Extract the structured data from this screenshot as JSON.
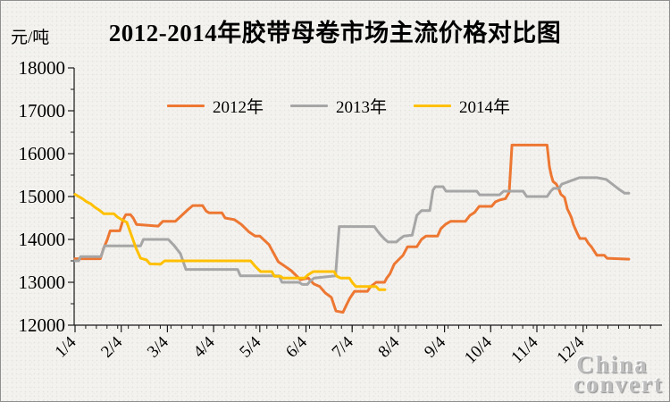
{
  "title": "2012-2014年胶带母卷市场主流价格对比图",
  "y_unit_label": "元/吨",
  "legend": {
    "items": [
      {
        "label": "2012年",
        "color": "#ED7732"
      },
      {
        "label": "2013年",
        "color": "#A6A6A6"
      },
      {
        "label": "2014年",
        "color": "#FFC000"
      }
    ]
  },
  "watermark": {
    "line1": "China",
    "line2": "convert"
  },
  "colors": {
    "axis": "#1a1a1a",
    "background": "#f3f2ef"
  },
  "chart_data": {
    "type": "line",
    "title": "2012-2014年胶带母卷市场主流价格对比图",
    "xlabel": "",
    "ylabel": "元/吨",
    "ylim": [
      12000,
      18000
    ],
    "y_major_ticks": [
      12000,
      13000,
      14000,
      15000,
      16000,
      17000,
      18000
    ],
    "y_minor_step": 500,
    "x_tick_labels": [
      "1/4",
      "2/4",
      "3/4",
      "4/4",
      "5/4",
      "6/4",
      "7/4",
      "8/4",
      "9/4",
      "10/4",
      "11/4",
      "12/4"
    ],
    "x_label_rotation": -45,
    "grid": false,
    "legend_position": "top-left-inside",
    "series": [
      {
        "name": "2012年",
        "color": "#ED7732",
        "points": [
          [
            1.0,
            13550
          ],
          [
            1.55,
            13550
          ],
          [
            1.62,
            13800
          ],
          [
            1.7,
            14000
          ],
          [
            1.76,
            14200
          ],
          [
            1.97,
            14200
          ],
          [
            2.04,
            14460
          ],
          [
            2.1,
            14580
          ],
          [
            2.2,
            14580
          ],
          [
            2.26,
            14500
          ],
          [
            2.33,
            14350
          ],
          [
            2.8,
            14310
          ],
          [
            2.9,
            14420
          ],
          [
            3.17,
            14420
          ],
          [
            3.3,
            14550
          ],
          [
            3.45,
            14700
          ],
          [
            3.55,
            14790
          ],
          [
            3.76,
            14790
          ],
          [
            3.84,
            14660
          ],
          [
            3.9,
            14620
          ],
          [
            4.18,
            14620
          ],
          [
            4.25,
            14500
          ],
          [
            4.45,
            14460
          ],
          [
            4.6,
            14350
          ],
          [
            4.77,
            14170
          ],
          [
            4.9,
            14080
          ],
          [
            5.0,
            14080
          ],
          [
            5.2,
            13880
          ],
          [
            5.4,
            13480
          ],
          [
            5.55,
            13370
          ],
          [
            5.68,
            13270
          ],
          [
            5.88,
            13060
          ],
          [
            6.05,
            13100
          ],
          [
            6.17,
            12960
          ],
          [
            6.3,
            12900
          ],
          [
            6.42,
            12750
          ],
          [
            6.55,
            12650
          ],
          [
            6.65,
            12330
          ],
          [
            6.8,
            12300
          ],
          [
            6.88,
            12480
          ],
          [
            6.95,
            12630
          ],
          [
            7.05,
            12790
          ],
          [
            7.33,
            12790
          ],
          [
            7.4,
            12900
          ],
          [
            7.52,
            13000
          ],
          [
            7.7,
            13000
          ],
          [
            7.75,
            13100
          ],
          [
            7.82,
            13200
          ],
          [
            7.91,
            13420
          ],
          [
            8.0,
            13520
          ],
          [
            8.1,
            13630
          ],
          [
            8.2,
            13830
          ],
          [
            8.4,
            13830
          ],
          [
            8.5,
            14000
          ],
          [
            8.6,
            14080
          ],
          [
            8.85,
            14080
          ],
          [
            8.92,
            14250
          ],
          [
            9.02,
            14350
          ],
          [
            9.13,
            14420
          ],
          [
            9.45,
            14420
          ],
          [
            9.55,
            14560
          ],
          [
            9.65,
            14630
          ],
          [
            9.75,
            14770
          ],
          [
            10.02,
            14770
          ],
          [
            10.1,
            14875
          ],
          [
            10.2,
            14920
          ],
          [
            10.32,
            14950
          ],
          [
            10.4,
            15100
          ],
          [
            10.46,
            16200
          ],
          [
            11.22,
            16200
          ],
          [
            11.27,
            15700
          ],
          [
            11.31,
            15500
          ],
          [
            11.35,
            15350
          ],
          [
            11.42,
            15290
          ],
          [
            11.47,
            15190
          ],
          [
            11.52,
            15050
          ],
          [
            11.6,
            14980
          ],
          [
            11.66,
            14710
          ],
          [
            11.71,
            14600
          ],
          [
            11.75,
            14500
          ],
          [
            11.79,
            14350
          ],
          [
            11.83,
            14250
          ],
          [
            11.87,
            14150
          ],
          [
            11.93,
            14020
          ],
          [
            12.05,
            14020
          ],
          [
            12.12,
            13900
          ],
          [
            12.18,
            13830
          ],
          [
            12.24,
            13730
          ],
          [
            12.3,
            13630
          ],
          [
            12.46,
            13630
          ],
          [
            12.52,
            13560
          ],
          [
            12.99,
            13540
          ]
        ]
      },
      {
        "name": "2013年",
        "color": "#A6A6A6",
        "points": [
          [
            1.0,
            13500
          ],
          [
            1.08,
            13500
          ],
          [
            1.12,
            13600
          ],
          [
            1.56,
            13600
          ],
          [
            1.64,
            13850
          ],
          [
            2.42,
            13850
          ],
          [
            2.48,
            14000
          ],
          [
            3.02,
            14000
          ],
          [
            3.15,
            13850
          ],
          [
            3.28,
            13670
          ],
          [
            3.4,
            13300
          ],
          [
            4.52,
            13300
          ],
          [
            4.58,
            13150
          ],
          [
            5.42,
            13150
          ],
          [
            5.48,
            13000
          ],
          [
            5.85,
            13000
          ],
          [
            5.92,
            12950
          ],
          [
            6.03,
            12950
          ],
          [
            6.1,
            13040
          ],
          [
            6.18,
            13100
          ],
          [
            6.64,
            13150
          ],
          [
            6.72,
            14300
          ],
          [
            7.48,
            14300
          ],
          [
            7.54,
            14210
          ],
          [
            7.62,
            14100
          ],
          [
            7.71,
            14000
          ],
          [
            7.78,
            13940
          ],
          [
            7.96,
            13940
          ],
          [
            8.02,
            14000
          ],
          [
            8.12,
            14080
          ],
          [
            8.3,
            14100
          ],
          [
            8.4,
            14560
          ],
          [
            8.5,
            14670
          ],
          [
            8.68,
            14670
          ],
          [
            8.75,
            15150
          ],
          [
            8.8,
            15230
          ],
          [
            8.97,
            15230
          ],
          [
            9.03,
            15125
          ],
          [
            9.7,
            15125
          ],
          [
            9.76,
            15040
          ],
          [
            10.19,
            15040
          ],
          [
            10.28,
            15125
          ],
          [
            10.7,
            15125
          ],
          [
            10.78,
            15000
          ],
          [
            11.22,
            15000
          ],
          [
            11.3,
            15125
          ],
          [
            11.36,
            15190
          ],
          [
            11.48,
            15190
          ],
          [
            11.54,
            15290
          ],
          [
            11.72,
            15360
          ],
          [
            11.92,
            15440
          ],
          [
            12.3,
            15440
          ],
          [
            12.5,
            15400
          ],
          [
            12.68,
            15250
          ],
          [
            12.8,
            15150
          ],
          [
            12.9,
            15080
          ],
          [
            12.99,
            15080
          ]
        ]
      },
      {
        "name": "2014年",
        "color": "#FFC000",
        "points": [
          [
            1.0,
            15050
          ],
          [
            1.08,
            15000
          ],
          [
            1.16,
            14950
          ],
          [
            1.25,
            14880
          ],
          [
            1.34,
            14830
          ],
          [
            1.43,
            14750
          ],
          [
            1.53,
            14680
          ],
          [
            1.62,
            14600
          ],
          [
            1.84,
            14600
          ],
          [
            1.92,
            14520
          ],
          [
            2.01,
            14460
          ],
          [
            2.12,
            14400
          ],
          [
            2.22,
            14100
          ],
          [
            2.32,
            13800
          ],
          [
            2.42,
            13560
          ],
          [
            2.55,
            13520
          ],
          [
            2.62,
            13430
          ],
          [
            2.85,
            13420
          ],
          [
            2.94,
            13500
          ],
          [
            4.8,
            13500
          ],
          [
            4.92,
            13350
          ],
          [
            5.02,
            13250
          ],
          [
            5.26,
            13250
          ],
          [
            5.32,
            13140
          ],
          [
            5.45,
            13140
          ],
          [
            5.5,
            13100
          ],
          [
            5.97,
            13100
          ],
          [
            6.05,
            13180
          ],
          [
            6.16,
            13250
          ],
          [
            6.61,
            13250
          ],
          [
            6.67,
            13140
          ],
          [
            6.75,
            13100
          ],
          [
            6.94,
            13100
          ],
          [
            7.0,
            13000
          ],
          [
            7.08,
            12900
          ],
          [
            7.52,
            12900
          ],
          [
            7.58,
            12830
          ],
          [
            7.71,
            12830
          ]
        ]
      }
    ]
  }
}
